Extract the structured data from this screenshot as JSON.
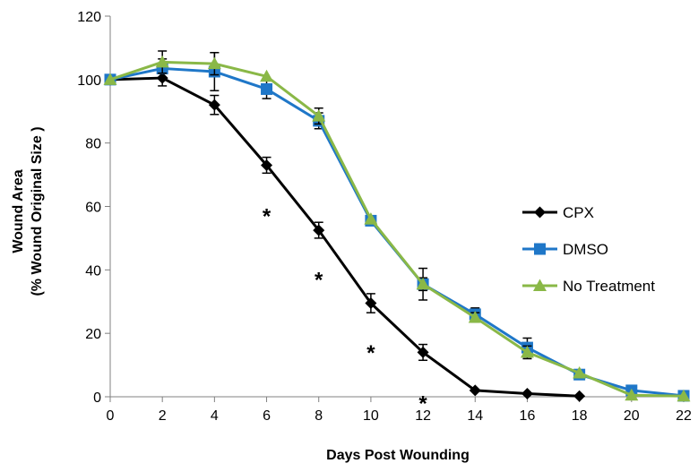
{
  "chart_data": {
    "type": "line",
    "title": "",
    "xlabel": "Days Post Wounding",
    "ylabel_line1": "Wound Area",
    "ylabel_line2": "(% Wound Original Size )",
    "xlim": [
      0,
      22
    ],
    "ylim": [
      0,
      120
    ],
    "xticks": [
      0,
      2,
      4,
      6,
      8,
      10,
      12,
      14,
      16,
      18,
      20,
      22
    ],
    "yticks": [
      0,
      20,
      40,
      60,
      80,
      100,
      120
    ],
    "grid": false,
    "legend_position": "right",
    "x": [
      0,
      2,
      4,
      6,
      8,
      10,
      12,
      14,
      16,
      18,
      20,
      22
    ],
    "series": [
      {
        "name": "CPX",
        "color": "#000000",
        "marker": "diamond",
        "x": [
          0,
          2,
          4,
          6,
          8,
          10,
          12,
          14,
          16,
          18
        ],
        "values": [
          100,
          100.5,
          92,
          73,
          52.5,
          29.5,
          14,
          2,
          1,
          0.2
        ],
        "errors": [
          0,
          2.5,
          3,
          2.5,
          2.5,
          3,
          2.5,
          0,
          0,
          0
        ]
      },
      {
        "name": "DMSO",
        "color": "#1f77c8",
        "marker": "square",
        "x": [
          0,
          2,
          4,
          6,
          8,
          10,
          12,
          14,
          16,
          18,
          20,
          22
        ],
        "values": [
          100,
          103.5,
          102.5,
          97,
          87,
          55.5,
          35.5,
          26,
          15.5,
          7,
          2,
          0.3
        ],
        "errors": [
          0,
          3,
          6,
          3,
          2.5,
          0,
          5,
          2,
          3,
          0,
          0,
          0
        ]
      },
      {
        "name": "No Treatment",
        "color": "#8ab847",
        "marker": "triangle",
        "x": [
          0,
          2,
          4,
          6,
          8,
          10,
          12,
          14,
          16,
          18,
          20,
          22
        ],
        "values": [
          100,
          105.5,
          105,
          101,
          88.5,
          56,
          35.5,
          25,
          14,
          7.5,
          0.5,
          0.2
        ],
        "errors": [
          0,
          3.5,
          3.5,
          0,
          2.5,
          0,
          2,
          1.5,
          2,
          0,
          0,
          0
        ]
      }
    ],
    "annotations": [
      {
        "text": "*",
        "x": 6,
        "y": 58
      },
      {
        "text": "*",
        "x": 8,
        "y": 38
      },
      {
        "text": "*",
        "x": 10,
        "y": 15
      },
      {
        "text": "*",
        "x": 12,
        "y": -1
      }
    ]
  }
}
